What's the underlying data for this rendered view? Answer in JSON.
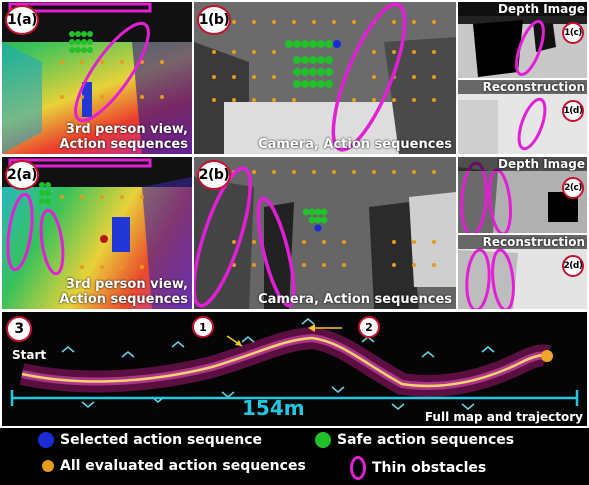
{
  "row1": {
    "a": {
      "tag": "1(a)",
      "caption_line1": "3rd person view,",
      "caption_line2": "Action sequences"
    },
    "b": {
      "tag": "1(b)",
      "caption": "Camera, Action sequences"
    },
    "c": {
      "tag": "1(c)",
      "title": "Depth Image"
    },
    "d": {
      "tag": "1(d)",
      "title": "Reconstruction"
    }
  },
  "row2": {
    "a": {
      "tag": "2(a)",
      "caption_line1": "3rd person view,",
      "caption_line2": "Action sequences"
    },
    "b": {
      "tag": "2(b)",
      "caption": "Camera, Action sequences"
    },
    "c": {
      "tag": "2(c)",
      "title": "Depth Image"
    },
    "d": {
      "tag": "2(d)",
      "title": "Reconstruction"
    }
  },
  "map": {
    "tag": "3",
    "start_label": "Start",
    "marker1": "1",
    "marker2": "2",
    "distance": "154m",
    "caption": "Full map and trajectory"
  },
  "legend": {
    "selected": "Selected action sequence",
    "safe": "Safe action sequences",
    "evaluated": "All evaluated action sequences",
    "thin": "Thin obstacles"
  },
  "colors": {
    "selected": "#1a2bd6",
    "safe": "#22c02a",
    "evaluated": "#e89a1c",
    "thin": "#e21fd6",
    "distance": "#22c8e0"
  }
}
